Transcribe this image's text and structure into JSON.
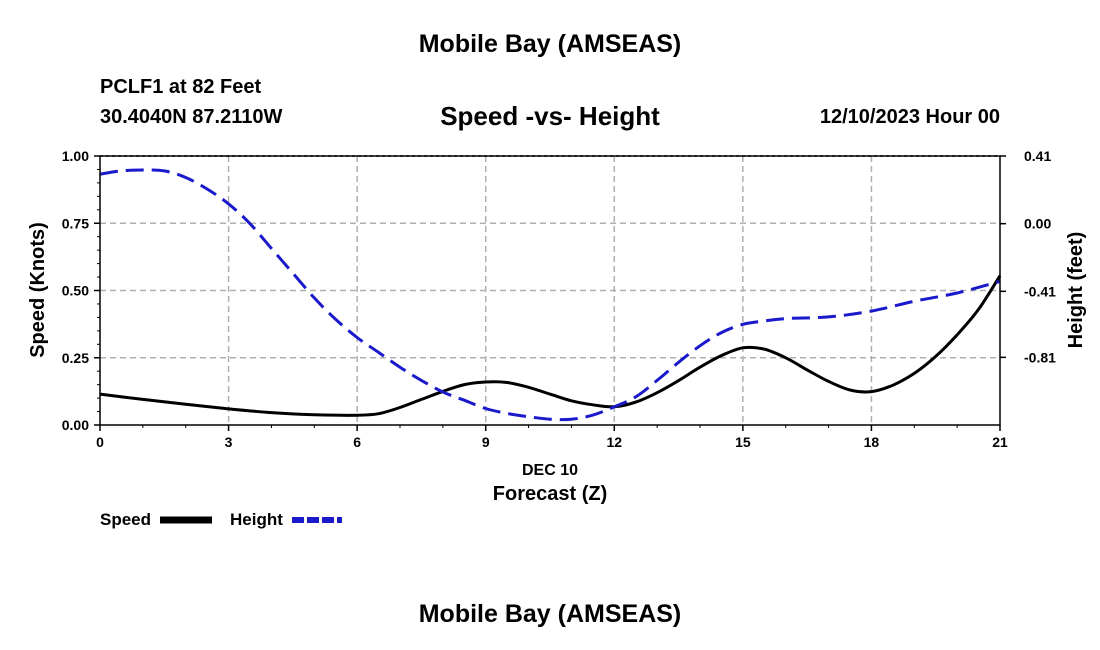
{
  "header": {
    "title": "Mobile Bay (AMSEAS)",
    "station": "PCLF1 at 82 Feet",
    "coords": "30.4040N  87.2110W",
    "subtitle": "Speed -vs- Height",
    "datetime": "12/10/2023 Hour 00"
  },
  "footer": {
    "title": "Mobile Bay (AMSEAS)"
  },
  "legend": {
    "speed_label": "Speed",
    "height_label": "Height"
  },
  "colors": {
    "speed": "#000000",
    "height": "#1a1acc",
    "grid": "#b0b0b0"
  },
  "chart_data": {
    "type": "line",
    "title": "Speed -vs- Height",
    "xlabel": "Forecast (Z)",
    "xlabel_date": "DEC 10",
    "ylabel": "Speed (Knots)",
    "y2label": "Height (feet)",
    "xlim": [
      0,
      21
    ],
    "ylim": [
      0,
      1
    ],
    "y2lim": [
      -1.22,
      0.41
    ],
    "x_ticks": [
      0,
      3,
      6,
      9,
      12,
      15,
      18,
      21
    ],
    "x_tick_labels": [
      "0",
      "3",
      "6",
      "9",
      "12",
      "15",
      "18",
      "21"
    ],
    "y_ticks": [
      0,
      0.25,
      0.5,
      0.75,
      1.0
    ],
    "y_tick_labels": [
      "0.00",
      "0.25",
      "0.50",
      "0.75",
      "1.00"
    ],
    "y2_ticks": [
      -0.81,
      -0.41,
      0.0,
      0.41
    ],
    "y2_tick_labels": [
      "-0.81",
      "-0.41",
      "0.00",
      "0.41"
    ],
    "grid": true,
    "series": [
      {
        "name": "Speed",
        "axis": "left",
        "style": "solid",
        "x": [
          0,
          1,
          2,
          3,
          4,
          5,
          6,
          6.5,
          7,
          7.5,
          8,
          8.5,
          9,
          9.5,
          10,
          10.5,
          11,
          11.5,
          12,
          12.5,
          13,
          13.5,
          14,
          14.5,
          15,
          15.5,
          16,
          16.5,
          17,
          17.5,
          18,
          18.5,
          19,
          19.5,
          20,
          20.5,
          21
        ],
        "values": [
          0.115,
          0.095,
          0.077,
          0.06,
          0.046,
          0.038,
          0.036,
          0.042,
          0.065,
          0.095,
          0.125,
          0.15,
          0.16,
          0.158,
          0.14,
          0.115,
          0.09,
          0.075,
          0.068,
          0.085,
          0.12,
          0.165,
          0.215,
          0.258,
          0.287,
          0.282,
          0.25,
          0.205,
          0.162,
          0.13,
          0.124,
          0.148,
          0.192,
          0.255,
          0.335,
          0.43,
          0.555
        ]
      },
      {
        "name": "Height",
        "axis": "right",
        "style": "dashed",
        "x": [
          0,
          0.5,
          1,
          1.5,
          2,
          2.5,
          3,
          3.5,
          4,
          4.5,
          5,
          5.5,
          6,
          6.5,
          7,
          7.5,
          8,
          8.5,
          9,
          9.5,
          10,
          10.5,
          11,
          11.5,
          12,
          12.5,
          13,
          13.5,
          14,
          14.5,
          15,
          15.5,
          16,
          17,
          18,
          19,
          20,
          21
        ],
        "values": [
          0.3,
          0.32,
          0.325,
          0.32,
          0.28,
          0.21,
          0.12,
          0.0,
          -0.15,
          -0.3,
          -0.45,
          -0.58,
          -0.69,
          -0.78,
          -0.87,
          -0.95,
          -1.02,
          -1.07,
          -1.12,
          -1.15,
          -1.17,
          -1.185,
          -1.185,
          -1.16,
          -1.11,
          -1.05,
          -0.95,
          -0.84,
          -0.74,
          -0.66,
          -0.61,
          -0.59,
          -0.575,
          -0.565,
          -0.53,
          -0.47,
          -0.42,
          -0.35
        ]
      }
    ]
  }
}
